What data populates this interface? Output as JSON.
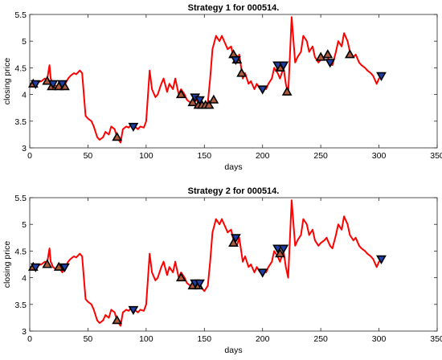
{
  "chart_data": [
    {
      "type": "line",
      "title": "Strategy 1 for 000514.",
      "xlabel": "days",
      "ylabel": "closing price",
      "xlim": [
        0,
        350
      ],
      "ylim": [
        3,
        5.5
      ],
      "xticks": [
        "0",
        "50",
        "100",
        "150",
        "200",
        "250",
        "300",
        "350"
      ],
      "yticks": [
        "3",
        "3.5",
        "4",
        "4.5",
        "5",
        "5.5"
      ],
      "grid": false,
      "line_color": "#ff0000",
      "series": [
        {
          "x": [
            0,
            5,
            10,
            13,
            15,
            17,
            18,
            20,
            23,
            25,
            28,
            30,
            33,
            35,
            38,
            40,
            43,
            45,
            48,
            50,
            53,
            55,
            58,
            60,
            63,
            65,
            68,
            70,
            73,
            75,
            78,
            80,
            83,
            85,
            88,
            90,
            93,
            95,
            98,
            100,
            103,
            105,
            108,
            110,
            113,
            115,
            118,
            120,
            123,
            125,
            128,
            130,
            133,
            135,
            138,
            140,
            143,
            145,
            148,
            150,
            153,
            155,
            157,
            160,
            163,
            165,
            168,
            170,
            173,
            175,
            178,
            180,
            183,
            185,
            188,
            190,
            193,
            195,
            198,
            200,
            203,
            205,
            208,
            210,
            213,
            215,
            218,
            220,
            222,
            225,
            228,
            230,
            233,
            235,
            238,
            240,
            243,
            245,
            248,
            250,
            253,
            255,
            258,
            260,
            263,
            265,
            268,
            270,
            273,
            275,
            278,
            280,
            283,
            285,
            288,
            290,
            293,
            295,
            298,
            300,
            303
          ],
          "y": [
            4.2,
            4.22,
            4.25,
            4.3,
            4.28,
            4.55,
            4.3,
            4.2,
            4.15,
            4.2,
            4.1,
            4.18,
            4.3,
            4.35,
            4.4,
            4.38,
            4.45,
            4.4,
            3.6,
            3.55,
            3.5,
            3.4,
            3.2,
            3.15,
            3.2,
            3.3,
            3.25,
            3.4,
            3.35,
            3.2,
            3.1,
            3.35,
            3.4,
            3.38,
            3.45,
            3.4,
            3.35,
            3.4,
            3.38,
            3.5,
            4.45,
            4.1,
            3.95,
            4.0,
            4.2,
            4.3,
            4.05,
            4.2,
            4.1,
            4.3,
            4.0,
            4.1,
            4.0,
            3.9,
            3.85,
            3.8,
            3.9,
            3.85,
            3.8,
            3.75,
            3.85,
            4.3,
            4.85,
            5.1,
            5.0,
            5.1,
            4.95,
            4.85,
            4.9,
            4.7,
            4.6,
            4.75,
            4.3,
            4.4,
            4.2,
            4.25,
            4.1,
            4.2,
            4.1,
            4.15,
            4.1,
            4.2,
            4.3,
            4.5,
            4.4,
            4.3,
            4.5,
            4.2,
            4.0,
            5.45,
            4.6,
            4.7,
            4.8,
            5.1,
            5.0,
            4.8,
            4.9,
            4.7,
            4.6,
            4.65,
            4.7,
            4.75,
            4.6,
            4.55,
            4.8,
            5.0,
            4.9,
            5.15,
            5.0,
            4.8,
            4.7,
            4.75,
            4.6,
            4.55,
            4.5,
            4.45,
            4.4,
            4.35,
            4.2,
            4.3,
            4.35
          ]
        }
      ],
      "buy_markers": {
        "symbol": "triangle-up",
        "x": [
          3,
          15,
          19,
          25,
          30,
          75,
          130,
          140,
          145,
          148,
          151,
          154,
          158,
          175,
          178,
          182,
          215,
          221,
          250,
          256,
          275
        ],
        "y": [
          4.2,
          4.25,
          4.15,
          4.15,
          4.15,
          3.2,
          4.0,
          3.85,
          3.8,
          3.8,
          3.8,
          3.8,
          3.9,
          4.75,
          4.65,
          4.4,
          4.5,
          4.05,
          4.7,
          4.75,
          4.75
        ]
      },
      "sell_markers": {
        "symbol": "triangle-down",
        "x": [
          5,
          20,
          28,
          89,
          142,
          146,
          177,
          200,
          213,
          218,
          258,
          302
        ],
        "y": [
          4.2,
          4.2,
          4.2,
          3.4,
          3.95,
          3.9,
          4.65,
          4.1,
          4.55,
          4.55,
          4.6,
          4.35
        ]
      }
    },
    {
      "type": "line",
      "title": "Strategy 2 for 000514.",
      "xlabel": "days",
      "ylabel": "closing price",
      "xlim": [
        0,
        350
      ],
      "ylim": [
        3,
        5.5
      ],
      "xticks": [
        "0",
        "50",
        "100",
        "150",
        "200",
        "250",
        "300",
        "350"
      ],
      "yticks": [
        "3",
        "3.5",
        "4",
        "4.5",
        "5",
        "5.5"
      ],
      "grid": false,
      "line_color": "#ff0000",
      "series": [
        {
          "x": [
            0,
            5,
            10,
            13,
            15,
            17,
            18,
            20,
            23,
            25,
            28,
            30,
            33,
            35,
            38,
            40,
            43,
            45,
            48,
            50,
            53,
            55,
            58,
            60,
            63,
            65,
            68,
            70,
            73,
            75,
            78,
            80,
            83,
            85,
            88,
            90,
            93,
            95,
            98,
            100,
            103,
            105,
            108,
            110,
            113,
            115,
            118,
            120,
            123,
            125,
            128,
            130,
            133,
            135,
            138,
            140,
            143,
            145,
            148,
            150,
            153,
            155,
            157,
            160,
            163,
            165,
            168,
            170,
            173,
            175,
            178,
            180,
            183,
            185,
            188,
            190,
            193,
            195,
            198,
            200,
            203,
            205,
            208,
            210,
            213,
            215,
            218,
            220,
            222,
            225,
            228,
            230,
            233,
            235,
            238,
            240,
            243,
            245,
            248,
            250,
            253,
            255,
            258,
            260,
            263,
            265,
            268,
            270,
            273,
            275,
            278,
            280,
            283,
            285,
            288,
            290,
            293,
            295,
            298,
            300,
            303
          ],
          "y": [
            4.2,
            4.22,
            4.25,
            4.3,
            4.28,
            4.55,
            4.3,
            4.2,
            4.15,
            4.2,
            4.1,
            4.18,
            4.3,
            4.35,
            4.4,
            4.38,
            4.45,
            4.4,
            3.6,
            3.55,
            3.5,
            3.4,
            3.2,
            3.15,
            3.2,
            3.3,
            3.25,
            3.4,
            3.35,
            3.2,
            3.1,
            3.35,
            3.4,
            3.38,
            3.45,
            3.4,
            3.35,
            3.4,
            3.38,
            3.5,
            4.45,
            4.1,
            3.95,
            4.0,
            4.2,
            4.3,
            4.05,
            4.2,
            4.1,
            4.3,
            4.0,
            4.1,
            4.0,
            3.9,
            3.85,
            3.8,
            3.9,
            3.85,
            3.8,
            3.75,
            3.85,
            4.3,
            4.85,
            5.1,
            5.0,
            5.1,
            4.95,
            4.85,
            4.9,
            4.7,
            4.6,
            4.75,
            4.3,
            4.4,
            4.2,
            4.25,
            4.1,
            4.2,
            4.1,
            4.15,
            4.1,
            4.2,
            4.3,
            4.5,
            4.4,
            4.3,
            4.5,
            4.2,
            4.0,
            5.45,
            4.6,
            4.7,
            4.8,
            5.1,
            5.0,
            4.8,
            4.9,
            4.7,
            4.6,
            4.65,
            4.7,
            4.75,
            4.6,
            4.55,
            4.8,
            5.0,
            4.9,
            5.15,
            5.0,
            4.8,
            4.7,
            4.75,
            4.6,
            4.55,
            4.5,
            4.45,
            4.4,
            4.35,
            4.2,
            4.3,
            4.35
          ]
        }
      ],
      "buy_markers": {
        "symbol": "triangle-up",
        "x": [
          3,
          15,
          25,
          75,
          130,
          140,
          145,
          175,
          215
        ],
        "y": [
          4.2,
          4.25,
          4.2,
          3.2,
          4.0,
          3.85,
          3.85,
          4.65,
          4.45
        ]
      },
      "sell_markers": {
        "symbol": "triangle-down",
        "x": [
          5,
          30,
          89,
          142,
          146,
          177,
          200,
          213,
          218,
          302
        ],
        "y": [
          4.2,
          4.2,
          3.4,
          3.9,
          3.9,
          4.75,
          4.1,
          4.55,
          4.55,
          4.35
        ]
      }
    }
  ]
}
